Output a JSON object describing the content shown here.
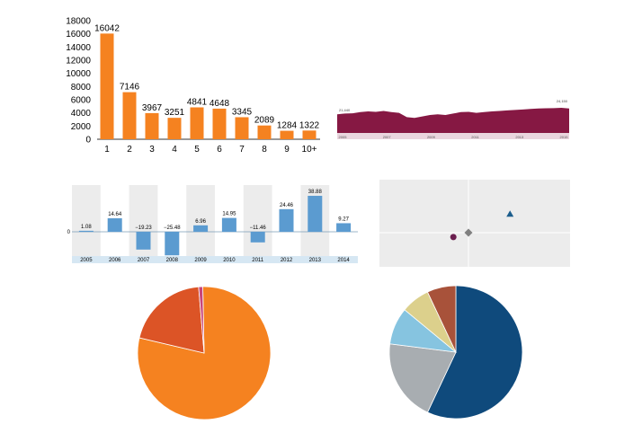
{
  "chart_data": [
    {
      "type": "bar",
      "title": "",
      "categories": [
        "1",
        "2",
        "3",
        "4",
        "5",
        "6",
        "7",
        "8",
        "9",
        "10+"
      ],
      "values": [
        16042,
        7146,
        3967,
        3251,
        4841,
        4648,
        3345,
        2089,
        1284,
        1322
      ],
      "ylim": [
        0,
        18000
      ],
      "yticks": [
        0,
        2000,
        4000,
        6000,
        8000,
        10000,
        12000,
        14000,
        16000,
        18000
      ],
      "color": "#f58220"
    },
    {
      "type": "area",
      "start_label": "21,440",
      "end_label": "24,150",
      "xticks": [
        "2005",
        "2007",
        "2009",
        "2011",
        "2013",
        "2015"
      ],
      "values": [
        0.55,
        0.6,
        0.62,
        0.7,
        0.75,
        0.72,
        0.78,
        0.7,
        0.65,
        0.35,
        0.3,
        0.4,
        0.5,
        0.55,
        0.5,
        0.6,
        0.7,
        0.72,
        0.65,
        0.7,
        0.75,
        0.78,
        0.82,
        0.85,
        0.88,
        0.92,
        0.95,
        0.97,
        0.98,
        1.0,
        0.95
      ],
      "color": "#861843"
    },
    {
      "type": "bar",
      "categories": [
        "2005",
        "2006",
        "2007",
        "2008",
        "2009",
        "2010",
        "2011",
        "2012",
        "2013",
        "2014"
      ],
      "values": [
        1.08,
        14.64,
        -19.23,
        -25.48,
        6.96,
        14.95,
        -11.46,
        24.46,
        38.88,
        9.27
      ],
      "value_labels": [
        "1.08",
        "14.64",
        "−19.23",
        "−25.48",
        "6.96",
        "14.95",
        "−11.46",
        "24.46",
        "38.88",
        "9.27"
      ],
      "zero_label": "0",
      "color": "#5b9bd0"
    },
    {
      "type": "scatter",
      "points": [
        {
          "x": 0.22,
          "y": 0.3,
          "shape": "triangle",
          "color": "#1b5d8c"
        },
        {
          "x": 0,
          "y": 0,
          "shape": "diamond",
          "color": "#808080"
        },
        {
          "x": -0.08,
          "y": -0.07,
          "shape": "circle",
          "color": "#6b1f4f"
        }
      ]
    },
    {
      "type": "pie",
      "values": [
        79,
        20,
        1
      ],
      "colors": [
        "#f58220",
        "#dc5426",
        "#c8457a"
      ]
    },
    {
      "type": "pie",
      "values": [
        57,
        20,
        9,
        7,
        7
      ],
      "colors": [
        "#0f4a7c",
        "#a8adb1",
        "#86c4e0",
        "#dcd08c",
        "#a8523a"
      ]
    }
  ]
}
